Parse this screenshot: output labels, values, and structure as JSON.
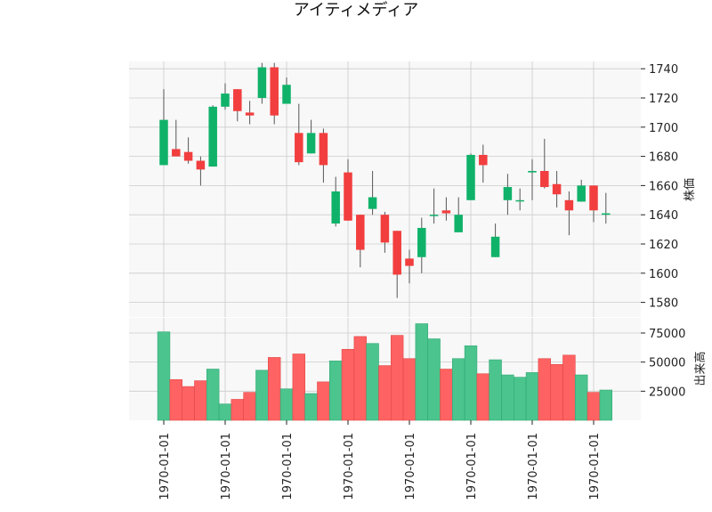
{
  "chart_data": {
    "type": "candlestick",
    "title": "アイティメディア",
    "x_tick_labels": [
      "1970-01-01",
      "1970-01-01",
      "1970-01-01",
      "1970-01-01",
      "1970-01-01",
      "1970-01-01",
      "1970-01-01",
      "1970-01-01"
    ],
    "x_tick_every": 5,
    "price_panel": {
      "ylabel": "株価",
      "ylim": [
        1570,
        1745
      ],
      "yticks": [
        1580,
        1600,
        1620,
        1640,
        1660,
        1680,
        1700,
        1720,
        1740
      ],
      "grid": true
    },
    "volume_panel": {
      "ylabel": "出来高",
      "ylim": [
        0,
        88000
      ],
      "yticks": [
        25000,
        50000,
        75000
      ],
      "grid": true
    },
    "colors": {
      "up": "#10b26a",
      "down": "#f23e3e",
      "up_volume": "#4cc48e",
      "down_volume": "#ff6262",
      "wick": "#555555",
      "panel_bg": "#f8f8f8",
      "grid": "#cccccc"
    },
    "candles": [
      {
        "open": 1674,
        "high": 1726,
        "low": 1674,
        "close": 1705,
        "volume": 76000
      },
      {
        "open": 1685,
        "high": 1705,
        "low": 1680,
        "close": 1680,
        "volume": 35000
      },
      {
        "open": 1683,
        "high": 1693,
        "low": 1675,
        "close": 1677,
        "volume": 29000
      },
      {
        "open": 1677,
        "high": 1680,
        "low": 1660,
        "close": 1671,
        "volume": 34000
      },
      {
        "open": 1673,
        "high": 1715,
        "low": 1673,
        "close": 1714,
        "volume": 44000
      },
      {
        "open": 1714,
        "high": 1730,
        "low": 1712,
        "close": 1723,
        "volume": 14000
      },
      {
        "open": 1726,
        "high": 1726,
        "low": 1704,
        "close": 1711,
        "volume": 18000
      },
      {
        "open": 1710,
        "high": 1718,
        "low": 1702,
        "close": 1708,
        "volume": 24000
      },
      {
        "open": 1720,
        "high": 1744,
        "low": 1716,
        "close": 1741,
        "volume": 43000
      },
      {
        "open": 1741,
        "high": 1744,
        "low": 1702,
        "close": 1708,
        "volume": 54000
      },
      {
        "open": 1716,
        "high": 1734,
        "low": 1716,
        "close": 1729,
        "volume": 27000
      },
      {
        "open": 1696,
        "high": 1716,
        "low": 1674,
        "close": 1676,
        "volume": 57000
      },
      {
        "open": 1682,
        "high": 1705,
        "low": 1682,
        "close": 1696,
        "volume": 23000
      },
      {
        "open": 1696,
        "high": 1699,
        "low": 1662,
        "close": 1674,
        "volume": 33000
      },
      {
        "open": 1634,
        "high": 1666,
        "low": 1632,
        "close": 1656,
        "volume": 51000
      },
      {
        "open": 1669,
        "high": 1678,
        "low": 1636,
        "close": 1636,
        "volume": 61000
      },
      {
        "open": 1640,
        "high": 1640,
        "low": 1604,
        "close": 1616,
        "volume": 72000
      },
      {
        "open": 1644,
        "high": 1670,
        "low": 1640,
        "close": 1652,
        "volume": 66000
      },
      {
        "open": 1640,
        "high": 1642,
        "low": 1614,
        "close": 1621,
        "volume": 47000
      },
      {
        "open": 1629,
        "high": 1629,
        "low": 1583,
        "close": 1599,
        "volume": 73000
      },
      {
        "open": 1610,
        "high": 1616,
        "low": 1593,
        "close": 1605,
        "volume": 53000
      },
      {
        "open": 1611,
        "high": 1638,
        "low": 1600,
        "close": 1631,
        "volume": 83000
      },
      {
        "open": 1640,
        "high": 1658,
        "low": 1634,
        "close": 1640,
        "volume": 70000
      },
      {
        "open": 1643,
        "high": 1652,
        "low": 1636,
        "close": 1641,
        "volume": 44000
      },
      {
        "open": 1628,
        "high": 1652,
        "low": 1628,
        "close": 1640,
        "volume": 53000
      },
      {
        "open": 1650,
        "high": 1682,
        "low": 1650,
        "close": 1681,
        "volume": 64000
      },
      {
        "open": 1681,
        "high": 1688,
        "low": 1662,
        "close": 1674,
        "volume": 40000
      },
      {
        "open": 1611,
        "high": 1634,
        "low": 1611,
        "close": 1625,
        "volume": 52000
      },
      {
        "open": 1650,
        "high": 1668,
        "low": 1640,
        "close": 1659,
        "volume": 39000
      },
      {
        "open": 1650,
        "high": 1658,
        "low": 1643,
        "close": 1650,
        "volume": 37000
      },
      {
        "open": 1669,
        "high": 1678,
        "low": 1650,
        "close": 1670,
        "volume": 41000
      },
      {
        "open": 1670,
        "high": 1692,
        "low": 1658,
        "close": 1659,
        "volume": 53000
      },
      {
        "open": 1661,
        "high": 1670,
        "low": 1645,
        "close": 1654,
        "volume": 48000
      },
      {
        "open": 1650,
        "high": 1656,
        "low": 1626,
        "close": 1643,
        "volume": 56000
      },
      {
        "open": 1649,
        "high": 1664,
        "low": 1649,
        "close": 1660,
        "volume": 39000
      },
      {
        "open": 1660,
        "high": 1660,
        "low": 1635,
        "close": 1643,
        "volume": 24000
      },
      {
        "open": 1640,
        "high": 1655,
        "low": 1634,
        "close": 1641,
        "volume": 26000
      }
    ]
  }
}
